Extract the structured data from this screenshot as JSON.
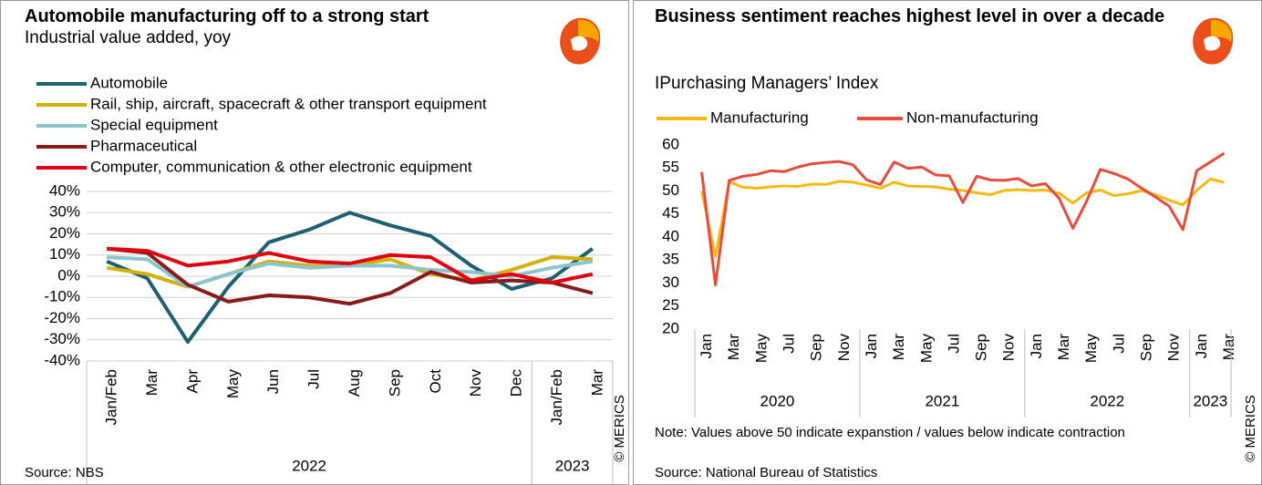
{
  "chart_data": [
    {
      "type": "line",
      "title": "Automobile manufacturing off to a strong start",
      "subtitle": "Industrial value added, yoy",
      "source": "Source: NBS",
      "watermark": "© MERICS",
      "categories": [
        "Jan/Feb",
        "Mar",
        "Apr",
        "May",
        "Jun",
        "Jul",
        "Aug",
        "Sep",
        "Oct",
        "Nov",
        "Dec",
        "Jan/Feb",
        "Mar"
      ],
      "groups": [
        {
          "label": "2022",
          "count": 11
        },
        {
          "label": "2023",
          "count": 2
        }
      ],
      "ylim": [
        -40,
        40
      ],
      "yticks": [
        {
          "value": -40,
          "label": "-40%"
        },
        {
          "value": -30,
          "label": "-30%"
        },
        {
          "value": -20,
          "label": "-20%"
        },
        {
          "value": -10,
          "label": "-10%"
        },
        {
          "value": 0,
          "label": "0%"
        },
        {
          "value": 10,
          "label": "10%"
        },
        {
          "value": 20,
          "label": "20%"
        },
        {
          "value": 30,
          "label": "30%"
        },
        {
          "value": 40,
          "label": "40%"
        }
      ],
      "grid": true,
      "legend": "top-left",
      "series": [
        {
          "name": "Automobile",
          "color": "#1f5f73",
          "values": [
            7,
            -1,
            -31,
            -5,
            16,
            22,
            30,
            24,
            19,
            5,
            -6,
            -1,
            13
          ]
        },
        {
          "name": "Rail, ship, aircraft, spacecraft & other transport equipment",
          "color": "#d4b00a",
          "values": [
            4,
            1,
            -5,
            1,
            7,
            5,
            5,
            8,
            1,
            -2,
            3,
            9,
            8
          ]
        },
        {
          "name": "Special equipment",
          "color": "#8cc4cc",
          "values": [
            9,
            8,
            -5,
            1,
            6,
            4,
            5,
            5,
            3,
            2,
            0,
            4,
            7
          ]
        },
        {
          "name": "Pharmaceutical",
          "color": "#8b1a1a",
          "values": [
            13,
            11,
            -4,
            -12,
            -9,
            -10,
            -13,
            -8,
            2,
            -3,
            -2,
            -3,
            -8
          ]
        },
        {
          "name": "Computer, communication & other electronic equipment",
          "color": "#e3000f",
          "values": [
            13,
            12,
            5,
            7,
            11,
            7,
            6,
            10,
            9,
            -2,
            1,
            -3,
            1
          ]
        }
      ]
    },
    {
      "type": "line",
      "title": "Business sentiment reaches highest level in over a decade",
      "subtitle": "IPurchasing Managers’ Index",
      "note": "Note: Values above 50 indicate expanstion / values below indicate contraction",
      "source": "Source: National Bureau of Statistics",
      "watermark": "© MERICS",
      "categories": [
        "Jan",
        null,
        "Mar",
        null,
        "May",
        null,
        "Jul",
        null,
        "Sep",
        null,
        "Nov",
        null,
        "Jan",
        null,
        "Mar",
        null,
        "May",
        null,
        "Jul",
        null,
        "Sep",
        null,
        "Nov",
        null,
        "Jan",
        null,
        "Mar",
        null,
        "May",
        null,
        "Jul",
        null,
        "Sep",
        null,
        "Nov",
        null,
        "Jan",
        null,
        "Mar"
      ],
      "groups": [
        {
          "label": "2020",
          "count": 12
        },
        {
          "label": "2021",
          "count": 12
        },
        {
          "label": "2022",
          "count": 12
        },
        {
          "label": "2023",
          "count": 3
        }
      ],
      "ylim": [
        20,
        60
      ],
      "yticks": [
        20,
        25,
        30,
        35,
        40,
        45,
        50,
        55,
        60
      ],
      "grid": false,
      "legend": "top-left",
      "series": [
        {
          "name": "Manufacturing",
          "color": "#f5b90f",
          "values": [
            50.0,
            35.7,
            52.0,
            50.8,
            50.6,
            50.9,
            51.1,
            51.0,
            51.5,
            51.4,
            52.1,
            51.9,
            51.3,
            50.6,
            51.9,
            51.1,
            51.0,
            50.9,
            50.4,
            50.1,
            49.6,
            49.2,
            50.1,
            50.3,
            50.1,
            50.2,
            49.5,
            47.4,
            49.6,
            50.2,
            49.0,
            49.4,
            50.1,
            49.2,
            48.0,
            47.0,
            50.1,
            52.6,
            51.9
          ]
        },
        {
          "name": "Non-manufacturing",
          "color": "#e84c3d",
          "values": [
            54.1,
            29.6,
            52.3,
            53.2,
            53.6,
            54.4,
            54.2,
            55.2,
            55.9,
            56.2,
            56.4,
            55.7,
            52.4,
            51.4,
            56.3,
            54.9,
            55.2,
            53.5,
            53.3,
            47.5,
            53.2,
            52.4,
            52.3,
            52.7,
            51.1,
            51.6,
            48.4,
            41.9,
            47.8,
            54.7,
            53.8,
            52.6,
            50.6,
            48.7,
            46.7,
            41.6,
            54.4,
            56.3,
            58.2
          ]
        }
      ]
    }
  ]
}
